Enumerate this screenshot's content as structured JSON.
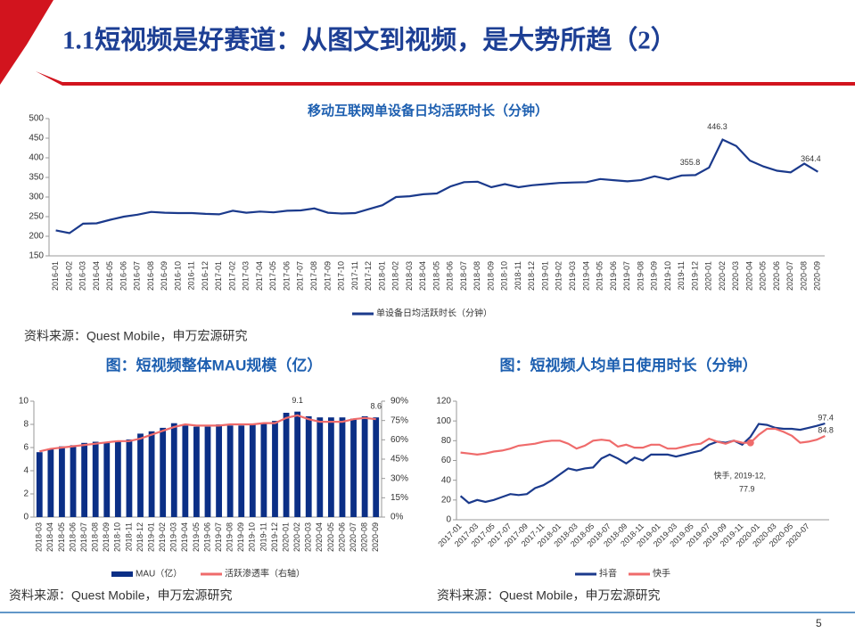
{
  "header": {
    "title": "1.1短视频是好赛道：从图文到视频，是大势所趋（2）",
    "page_number": "5"
  },
  "chart_data": [
    {
      "type": "line",
      "title": "移动互联网单设备日均活跃时长（分钟）",
      "source": "资料来源：Quest Mobile，申万宏源研究",
      "categories": [
        "2016-01",
        "2016-02",
        "2016-03",
        "2016-04",
        "2016-05",
        "2016-06",
        "2016-07",
        "2016-08",
        "2016-09",
        "2016-10",
        "2016-11",
        "2016-12",
        "2017-01",
        "2017-02",
        "2017-03",
        "2017-04",
        "2017-05",
        "2017-06",
        "2017-07",
        "2017-08",
        "2017-09",
        "2017-10",
        "2017-11",
        "2017-12",
        "2018-01",
        "2018-02",
        "2018-03",
        "2018-04",
        "2018-05",
        "2018-06",
        "2018-07",
        "2018-08",
        "2018-09",
        "2018-10",
        "2018-11",
        "2018-12",
        "2019-01",
        "2019-02",
        "2019-03",
        "2019-04",
        "2019-05",
        "2019-06",
        "2019-07",
        "2019-08",
        "2019-09",
        "2019-10",
        "2019-11",
        "2019-12",
        "2020-01",
        "2020-02",
        "2020-03",
        "2020-04",
        "2020-05",
        "2020-06",
        "2020-07",
        "2020-08",
        "2020-09"
      ],
      "series": [
        {
          "name": "单设备日均活跃时长（分钟）",
          "color": "#1b3a8c",
          "values": [
            215,
            208,
            232,
            233,
            242,
            250,
            255,
            262,
            260,
            259,
            259,
            257,
            256,
            265,
            260,
            263,
            261,
            265,
            266,
            271,
            260,
            258,
            259,
            269,
            279,
            300,
            302,
            307,
            309,
            327,
            338,
            339,
            325,
            333,
            325,
            330,
            333,
            336,
            337,
            338,
            346,
            343,
            340,
            343,
            353,
            345,
            355,
            355.8,
            375,
            446.3,
            430,
            393,
            378,
            367,
            363,
            385,
            364.4
          ],
          "value_labels": [
            null,
            null,
            null,
            null,
            null,
            null,
            null,
            null,
            null,
            null,
            null,
            null,
            null,
            null,
            null,
            null,
            null,
            null,
            null,
            null,
            null,
            null,
            null,
            null,
            null,
            null,
            null,
            null,
            null,
            null,
            null,
            null,
            null,
            null,
            null,
            null,
            null,
            null,
            null,
            null,
            null,
            null,
            null,
            null,
            null,
            null,
            null,
            "355.8",
            null,
            "446.3",
            null,
            null,
            null,
            null,
            null,
            null,
            "364.4"
          ]
        }
      ],
      "ylim": [
        150,
        500
      ],
      "yticks": [
        150,
        200,
        250,
        300,
        350,
        400,
        450,
        500
      ],
      "grid": false
    },
    {
      "type": "bar-line",
      "title": "图：短视频整体MAU规模（亿）",
      "source": "资料来源：Quest Mobile，申万宏源研究",
      "categories": [
        "2018-03",
        "2018-04",
        "2018-05",
        "2018-06",
        "2018-07",
        "2018-08",
        "2018-09",
        "2018-10",
        "2018-11",
        "2018-12",
        "2019-01",
        "2019-02",
        "2019-03",
        "2019-04",
        "2019-05",
        "2019-06",
        "2019-07",
        "2019-08",
        "2019-09",
        "2019-10",
        "2019-11",
        "2019-12",
        "2020-01",
        "2020-02",
        "2020-03",
        "2020-04",
        "2020-05",
        "2020-06",
        "2020-07",
        "2020-08",
        "2020-09"
      ],
      "series": [
        {
          "name": "MAU（亿）",
          "color": "#0b2f86",
          "values": [
            5.6,
            5.9,
            6.1,
            6.2,
            6.4,
            6.5,
            6.5,
            6.6,
            6.7,
            7.2,
            7.4,
            7.7,
            8.1,
            7.9,
            7.8,
            7.8,
            8.0,
            7.9,
            7.9,
            8.0,
            8.1,
            8.3,
            9.0,
            9.1,
            8.7,
            8.6,
            8.6,
            8.6,
            8.5,
            8.7,
            8.6
          ],
          "value_labels": [
            null,
            null,
            null,
            null,
            null,
            null,
            null,
            null,
            null,
            null,
            null,
            null,
            null,
            null,
            null,
            null,
            null,
            null,
            null,
            null,
            null,
            null,
            null,
            "9.1",
            null,
            null,
            null,
            null,
            null,
            null,
            "8.6"
          ]
        },
        {
          "name": "活跃渗透率（右轴）",
          "color": "#ef6b6b",
          "axis": "y2",
          "values": [
            51,
            53,
            54,
            55,
            56,
            57,
            58,
            59,
            59,
            61,
            64,
            67,
            70,
            72,
            71,
            71,
            71,
            72,
            72,
            72,
            73,
            73,
            77,
            79,
            76,
            74,
            74,
            74,
            76,
            77,
            76
          ]
        }
      ],
      "ylim": [
        0,
        10
      ],
      "yticks": [
        0,
        2,
        4,
        6,
        8,
        10
      ],
      "y2lim": [
        0,
        90
      ],
      "y2ticks": [
        {
          "value": 0,
          "label": "0%"
        },
        {
          "value": 15,
          "label": "15%"
        },
        {
          "value": 30,
          "label": "30%"
        },
        {
          "value": 45,
          "label": "45%"
        },
        {
          "value": 60,
          "label": "60%"
        },
        {
          "value": 75,
          "label": "75%"
        },
        {
          "value": 90,
          "label": "90%"
        }
      ],
      "grid": false
    },
    {
      "type": "line",
      "title": "图：短视频人均单日使用时长（分钟）",
      "source": "资料来源：Quest Mobile，申万宏源研究",
      "categories": [
        "2017-01",
        null,
        "2017-03",
        null,
        "2017-05",
        null,
        "2017-07",
        null,
        "2017-09",
        null,
        "2017-11",
        null,
        "2018-01",
        null,
        "2018-03",
        null,
        "2018-05",
        null,
        "2018-07",
        null,
        "2018-09",
        null,
        "2018-11",
        null,
        "2019-01",
        null,
        "2019-03",
        null,
        "2019-05",
        null,
        "2019-07",
        null,
        "2019-09",
        null,
        "2019-11",
        null,
        "2020-01",
        null,
        "2020-03",
        null,
        "2020-05",
        null,
        "2020-07",
        null,
        null
      ],
      "series": [
        {
          "name": "抖音",
          "color": "#1b3a8c",
          "values": [
            24,
            17,
            20,
            18,
            20,
            23,
            26,
            25,
            26,
            32,
            35,
            40,
            46,
            52,
            50,
            52,
            53,
            62,
            66,
            62,
            57,
            63,
            60,
            66,
            66,
            66,
            64,
            66,
            68,
            70,
            76,
            79,
            78,
            80,
            76,
            84,
            97,
            96,
            93,
            92,
            92,
            91,
            93,
            95,
            97.4
          ],
          "value_labels": [
            null,
            null,
            null,
            null,
            null,
            null,
            null,
            null,
            null,
            null,
            null,
            null,
            null,
            null,
            null,
            null,
            null,
            null,
            null,
            null,
            null,
            null,
            null,
            null,
            null,
            null,
            null,
            null,
            null,
            null,
            null,
            null,
            null,
            null,
            null,
            null,
            null,
            null,
            null,
            null,
            null,
            null,
            null,
            null,
            "97.4"
          ]
        },
        {
          "name": "快手",
          "color": "#ef6b6b",
          "values": [
            68,
            67,
            66,
            67,
            69,
            70,
            72,
            75,
            76,
            77,
            79,
            80,
            80,
            77,
            72,
            75,
            80,
            81,
            80,
            74,
            76,
            73,
            73,
            76,
            76,
            72,
            72,
            74,
            76,
            77,
            82,
            79,
            77,
            80,
            78,
            77.9,
            86,
            92,
            92,
            89,
            85,
            78,
            79,
            81,
            84.8
          ],
          "value_labels": [
            null,
            null,
            null,
            null,
            null,
            null,
            null,
            null,
            null,
            null,
            null,
            null,
            null,
            null,
            null,
            null,
            null,
            null,
            null,
            null,
            null,
            null,
            null,
            null,
            null,
            null,
            null,
            null,
            null,
            null,
            null,
            null,
            null,
            null,
            null,
            null,
            null,
            null,
            null,
            null,
            null,
            null,
            null,
            null,
            "84.8"
          ]
        }
      ],
      "annotation": [
        "快手, 2019-12,",
        "77.9"
      ],
      "ylim": [
        0,
        120
      ],
      "yticks": [
        0,
        20,
        40,
        60,
        80,
        100,
        120
      ],
      "grid": false
    }
  ]
}
